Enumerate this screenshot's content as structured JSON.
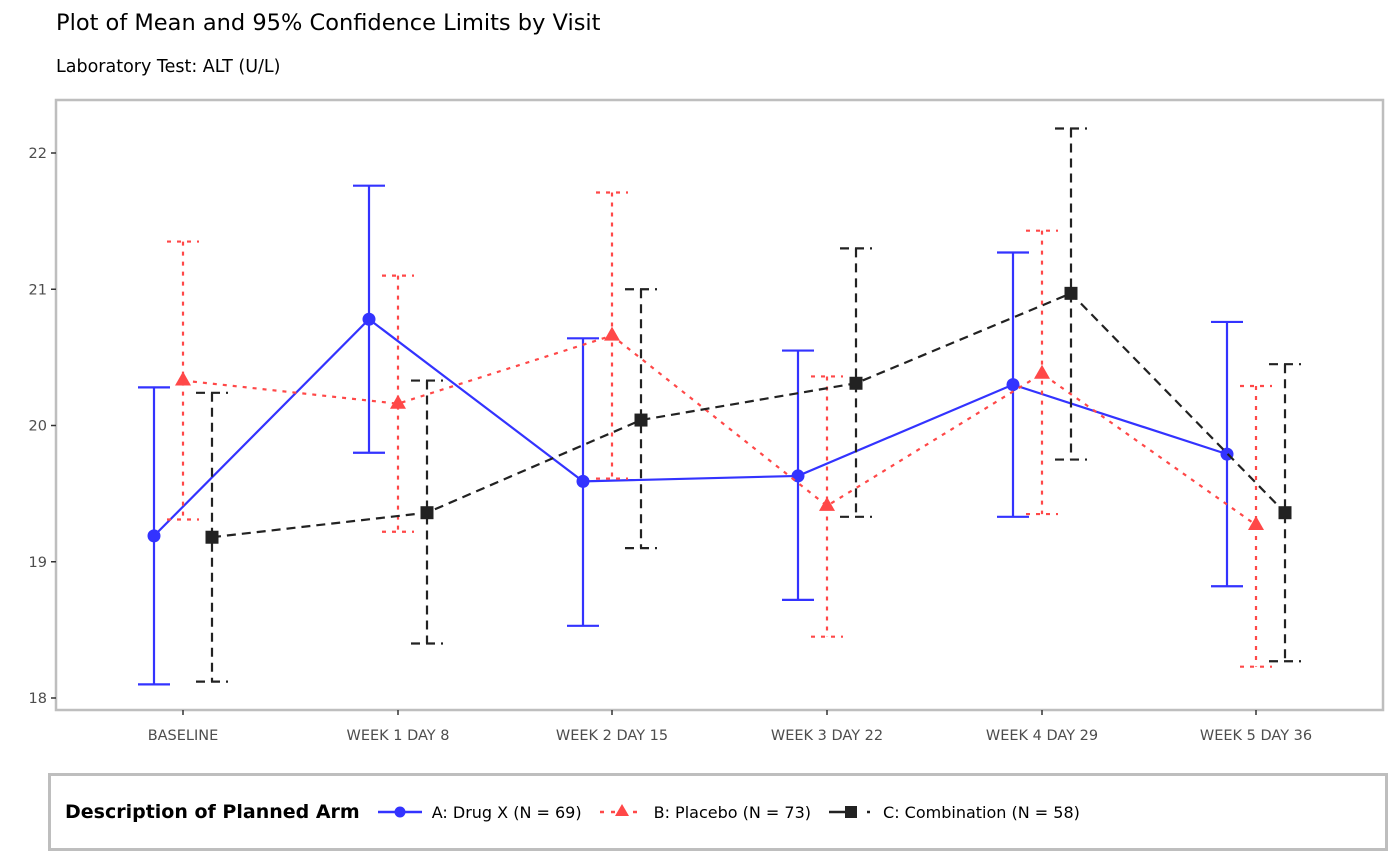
{
  "chart_data": {
    "type": "line",
    "title": "Plot of Mean and 95% Confidence Limits by Visit",
    "subtitle": "Laboratory Test: ALT (U/L)",
    "xlabel": "",
    "ylabel": "",
    "ylim": [
      17.98,
      22.35
    ],
    "yticks": [
      18,
      19,
      20,
      21,
      22
    ],
    "ytick_labels": [
      "18",
      "19",
      "20",
      "21",
      "22"
    ],
    "grid": false,
    "categories": [
      "BASELINE",
      "WEEK 1 DAY 8",
      "WEEK 2 DAY 15",
      "WEEK 3 DAY 22",
      "WEEK 4 DAY 29",
      "WEEK 5 DAY 36"
    ],
    "legend": {
      "title": "Description of Planned Arm",
      "placement": "bottom"
    },
    "series": [
      {
        "name": "A: Drug X (N = 69)",
        "color": "#3333ff",
        "marker": "circle",
        "linestyle": "solid",
        "mean": [
          19.19,
          20.78,
          19.59,
          19.63,
          20.3,
          19.79
        ],
        "lower": [
          18.1,
          19.8,
          18.53,
          18.72,
          19.33,
          18.82
        ],
        "upper": [
          20.28,
          21.76,
          20.64,
          20.55,
          21.27,
          20.76
        ]
      },
      {
        "name": "B: Placebo (N = 73)",
        "color": "#ff4848",
        "marker": "triangle",
        "linestyle": "dotted",
        "mean": [
          20.33,
          20.16,
          20.66,
          19.41,
          20.38,
          19.27
        ],
        "lower": [
          19.31,
          19.22,
          19.61,
          18.45,
          19.35,
          18.23
        ],
        "upper": [
          21.35,
          21.1,
          21.71,
          20.36,
          21.43,
          20.29
        ]
      },
      {
        "name": "C: Combination (N = 58)",
        "color": "#222222",
        "marker": "square",
        "linestyle": "dashed",
        "mean": [
          19.18,
          19.36,
          20.04,
          20.31,
          20.97,
          19.36
        ],
        "lower": [
          18.12,
          18.4,
          19.1,
          19.33,
          19.75,
          18.27
        ],
        "upper": [
          20.24,
          20.33,
          21.0,
          21.3,
          22.18,
          20.45
        ]
      }
    ]
  }
}
